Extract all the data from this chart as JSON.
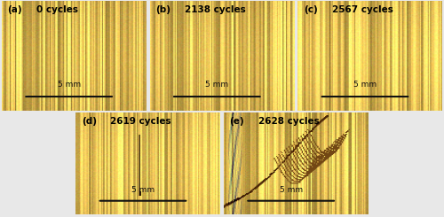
{
  "panels": [
    {
      "label": "(a)",
      "cycles": "0 cycles",
      "has_crack": false,
      "has_buckle": false
    },
    {
      "label": "(b)",
      "cycles": "2138 cycles",
      "has_crack": false,
      "has_buckle": false
    },
    {
      "label": "(c)",
      "cycles": "2567 cycles",
      "has_crack": false,
      "has_buckle": false
    },
    {
      "label": "(d)",
      "cycles": "2619 cycles",
      "has_crack": true,
      "has_buckle": false
    },
    {
      "label": "(e)",
      "cycles": "2628 cycles",
      "has_crack": false,
      "has_buckle": true
    }
  ],
  "bg_color": "#e8e8e8",
  "fiber_base": "#d8b860",
  "fiber_light": "#f0d888",
  "fiber_mid": "#c8a448",
  "fiber_dark": "#a07828",
  "border_color": "#222222",
  "scale_bar_label": "5 mm",
  "scale_bar_color": "#111111"
}
